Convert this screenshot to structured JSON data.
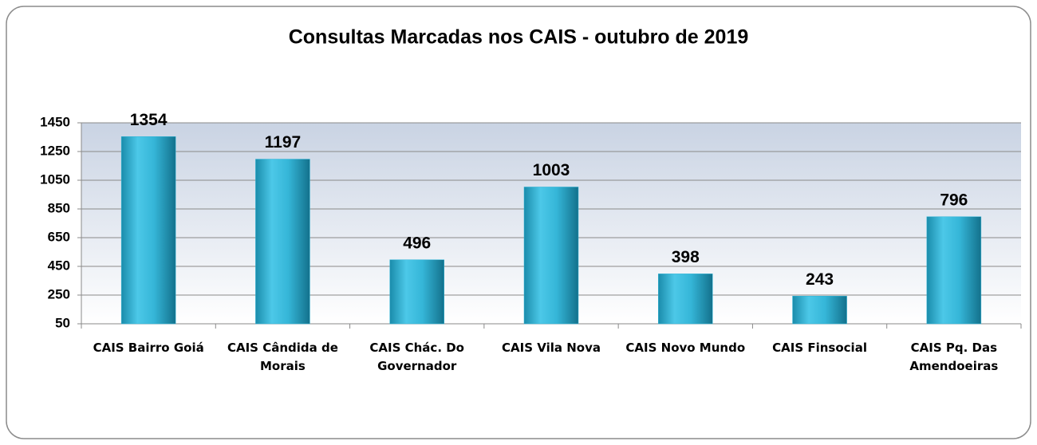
{
  "chart_data": {
    "type": "bar",
    "title": "Consultas Marcadas nos CAIS - outubro de 2019",
    "categories": [
      "CAIS Bairro Goiá",
      "CAIS Cândida de Morais",
      "CAIS Chác. Do Governador",
      "CAIS Vila Nova",
      "CAIS Novo Mundo",
      "CAIS Finsocial",
      "CAIS Pq. Das Amendoeiras"
    ],
    "values": [
      1354,
      1197,
      496,
      1003,
      398,
      243,
      796
    ],
    "color": "#2fb4d6",
    "ylim": [
      50,
      1450
    ],
    "yticks": [
      50,
      250,
      450,
      650,
      850,
      1050,
      1250,
      1450
    ],
    "grid": true
  }
}
